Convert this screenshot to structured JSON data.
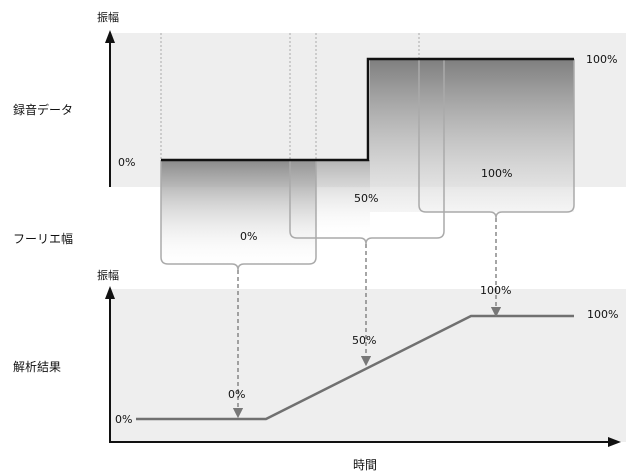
{
  "labels": {
    "top_y_axis": "振幅",
    "recording_row": "録音データ",
    "fourier_row": "フーリエ幅",
    "bottom_y_axis": "振幅",
    "analysis_row": "解析結果",
    "x_axis": "時間"
  },
  "recording": {
    "low_value": "0%",
    "high_value": "100%"
  },
  "fourier": {
    "window_1": "0%",
    "window_2": "50%",
    "window_3": "100%"
  },
  "analysis": {
    "start_value": "0%",
    "end_value": "100%",
    "point_1": "0%",
    "point_2": "50%",
    "point_3": "100%"
  },
  "colors": {
    "band": "#eeeeee",
    "signal": "#111111",
    "gradient_dark": "#8a8a8a",
    "result_line": "#707070",
    "dashed": "#777777",
    "bracket": "#aaaaaa"
  }
}
